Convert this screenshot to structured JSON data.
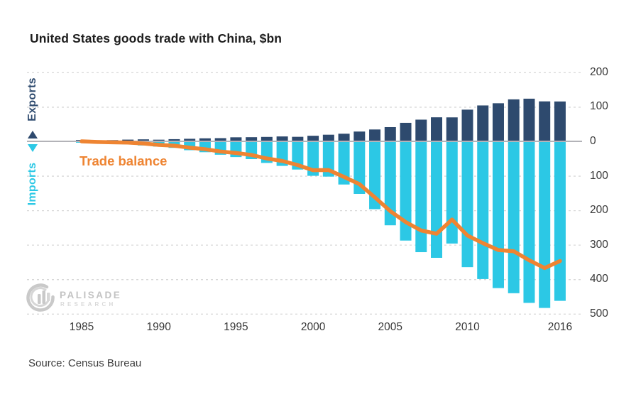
{
  "title": "United States goods trade with China, $bn",
  "source": "Source: Census Bureau",
  "legend": {
    "exports_label": "Exports",
    "imports_label": "Imports",
    "exports_marker": "up-triangle",
    "imports_marker": "down-triangle"
  },
  "line_label": "Trade balance",
  "logo": {
    "name": "PALISADE",
    "sub": "RESEARCH"
  },
  "colors": {
    "exports_bar": "#2e4a6e",
    "imports_bar": "#2cc8e5",
    "balance_line": "#ee8432",
    "gridline": "#d8d8d8",
    "zero_line": "#b3b3b8",
    "tick_text": "#383838",
    "title_text": "#1d1d1d",
    "logo_gray": "#c9c9c9"
  },
  "chart_data": {
    "type": "bar",
    "subtype": "diverging bars with overlaid line",
    "title": "United States goods trade with China, $bn",
    "xlabel": "",
    "ylabel": "$bn",
    "x": [
      1985,
      1986,
      1987,
      1988,
      1989,
      1990,
      1991,
      1992,
      1993,
      1994,
      1995,
      1996,
      1997,
      1998,
      1999,
      2000,
      2001,
      2002,
      2003,
      2004,
      2005,
      2006,
      2007,
      2008,
      2009,
      2010,
      2011,
      2012,
      2013,
      2014,
      2015,
      2016
    ],
    "series": [
      {
        "name": "Exports",
        "type": "bar",
        "direction": "up",
        "values": [
          3.9,
          3.1,
          3.5,
          5.0,
          5.8,
          4.8,
          6.3,
          7.4,
          8.8,
          9.3,
          11.7,
          12.0,
          12.8,
          14.2,
          13.1,
          16.2,
          19.2,
          22.1,
          28.4,
          34.4,
          41.2,
          53.7,
          62.9,
          69.7,
          69.5,
          91.9,
          104.1,
          110.5,
          121.7,
          123.7,
          115.9,
          115.6
        ]
      },
      {
        "name": "Imports",
        "type": "bar",
        "direction": "down",
        "values": [
          3.9,
          4.8,
          6.3,
          8.5,
          12.0,
          15.2,
          19.0,
          25.7,
          31.5,
          38.8,
          45.6,
          51.5,
          62.6,
          71.2,
          81.8,
          100.0,
          102.3,
          125.2,
          152.4,
          196.7,
          243.5,
          287.8,
          321.4,
          337.8,
          296.4,
          364.9,
          399.4,
          425.6,
          440.4,
          468.5,
          483.2,
          462.6
        ]
      },
      {
        "name": "Trade balance",
        "type": "line",
        "values": [
          0.0,
          -1.7,
          -2.8,
          -3.5,
          -6.2,
          -10.4,
          -12.7,
          -18.3,
          -22.8,
          -29.5,
          -33.8,
          -39.5,
          -49.7,
          -56.9,
          -68.7,
          -83.8,
          -83.1,
          -103.1,
          -124.0,
          -162.3,
          -202.3,
          -234.1,
          -258.5,
          -268.0,
          -226.9,
          -273.0,
          -295.2,
          -315.1,
          -318.7,
          -344.8,
          -367.3,
          -347.0
        ]
      }
    ],
    "y_axis": {
      "side": "right",
      "ticks": [
        200,
        100,
        0,
        -100,
        -200,
        -300,
        -400,
        -500
      ],
      "tick_labels": [
        "200",
        "100",
        "0",
        "100",
        "200",
        "300",
        "400",
        "500"
      ],
      "range": [
        -520,
        230
      ],
      "grid": "dashed horizontal, solid zero line"
    },
    "x_ticks": [
      {
        "label": "1985",
        "year": 1985
      },
      {
        "label": "1990",
        "year": 1990
      },
      {
        "label": "1995",
        "year": 1995
      },
      {
        "label": "2000",
        "year": 2000
      },
      {
        "label": "2005",
        "year": 2005
      },
      {
        "label": "2010",
        "year": 2010
      },
      {
        "label": "2016",
        "year": 2016
      }
    ],
    "legend_position": "left, rotated vertical labels"
  }
}
